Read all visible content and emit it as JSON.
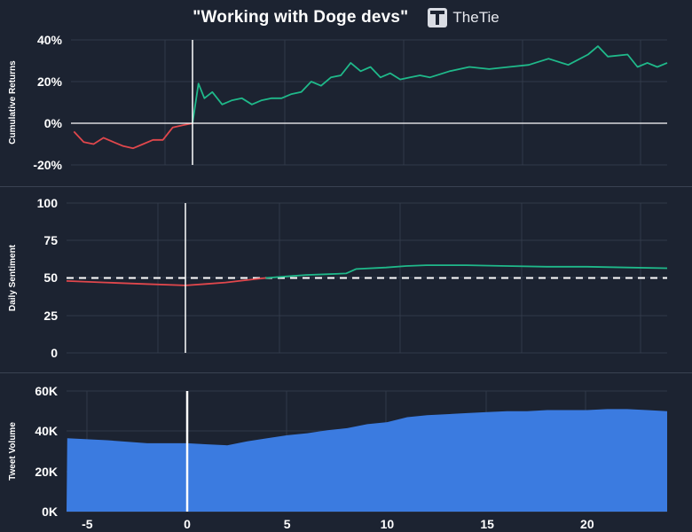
{
  "header": {
    "title": "\"Working with Doge devs\"",
    "brand": "TheTie"
  },
  "colors": {
    "background": "#1c2331",
    "grid": "#313949",
    "negative": "#e0474c",
    "positive": "#1fb98a",
    "volume": "#3b7be0",
    "baseline": "#ffffff"
  },
  "chart_data": [
    {
      "type": "line",
      "ylabel": "Cumulative Returns",
      "yticks": [
        "40%",
        "20%",
        "0%",
        "-20%"
      ],
      "ylim": [
        -20,
        40
      ],
      "xlim": [
        -6,
        24
      ],
      "series": [
        {
          "x": [
            -6,
            -5.5,
            -5,
            -4.5,
            -4,
            -3.5,
            -3,
            -2.5,
            -2,
            -1.5,
            -1,
            -0.5,
            0
          ],
          "values": [
            -4,
            -9,
            -10,
            -7,
            -9,
            -11,
            -12,
            -10,
            -8,
            -8,
            -2,
            -1,
            0
          ]
        },
        {
          "x": [
            0,
            0.3,
            0.6,
            1,
            1.5,
            2,
            2.5,
            3,
            3.5,
            4,
            4.5,
            5,
            5.5,
            6,
            6.5,
            7,
            7.5,
            8,
            8.5,
            9,
            9.5,
            10,
            10.5,
            11,
            11.5,
            12,
            13,
            14,
            15,
            16,
            17,
            18,
            19,
            20,
            20.5,
            21,
            22,
            22.5,
            23,
            23.5,
            24
          ],
          "values": [
            0,
            19,
            12,
            15,
            9,
            11,
            12,
            9,
            11,
            12,
            12,
            14,
            15,
            20,
            18,
            22,
            23,
            29,
            25,
            27,
            22,
            24,
            21,
            22,
            23,
            22,
            25,
            27,
            26,
            27,
            28,
            31,
            28,
            33,
            37,
            32,
            33,
            27,
            29,
            27,
            29
          ]
        }
      ]
    },
    {
      "type": "line",
      "ylabel": "Daily Sentiment",
      "yticks": [
        "100",
        "75",
        "50",
        "25",
        "0"
      ],
      "ylim": [
        0,
        100
      ],
      "xlim": [
        -6,
        24
      ],
      "reference_line": 50,
      "series": [
        {
          "x": [
            -6,
            -4,
            -2,
            0,
            1,
            2,
            3,
            4
          ],
          "values": [
            48,
            47,
            46,
            45,
            46,
            47,
            48.5,
            50
          ]
        },
        {
          "x": [
            4,
            5,
            6,
            7,
            8,
            8.5,
            10,
            11,
            12,
            14,
            16,
            18,
            20,
            22,
            24
          ],
          "values": [
            50,
            51,
            52,
            52.5,
            53,
            56,
            57,
            58,
            58.5,
            58.5,
            58,
            57.5,
            57.5,
            57,
            56.5
          ]
        }
      ]
    },
    {
      "type": "area",
      "ylabel": "Tweet Volume",
      "yticks": [
        "60K",
        "40K",
        "20K",
        "0K"
      ],
      "ylim": [
        0,
        60000
      ],
      "xlim": [
        -6,
        24
      ],
      "xticks": [
        "-5",
        "0",
        "5",
        "10",
        "15",
        "20"
      ],
      "series": [
        {
          "x": [
            -6,
            -4,
            -2,
            0,
            1,
            2,
            3,
            4,
            5,
            6,
            7,
            8,
            9,
            10,
            11,
            12,
            13,
            14,
            15,
            16,
            17,
            18,
            19,
            20,
            21,
            22,
            23,
            24
          ],
          "values": [
            36500,
            35500,
            34000,
            34000,
            33500,
            33000,
            35000,
            36500,
            38000,
            39000,
            40500,
            41500,
            43500,
            44500,
            47000,
            48000,
            48500,
            49000,
            49500,
            50000,
            50000,
            50500,
            50500,
            50500,
            51000,
            51000,
            50500,
            50000
          ]
        }
      ]
    }
  ]
}
